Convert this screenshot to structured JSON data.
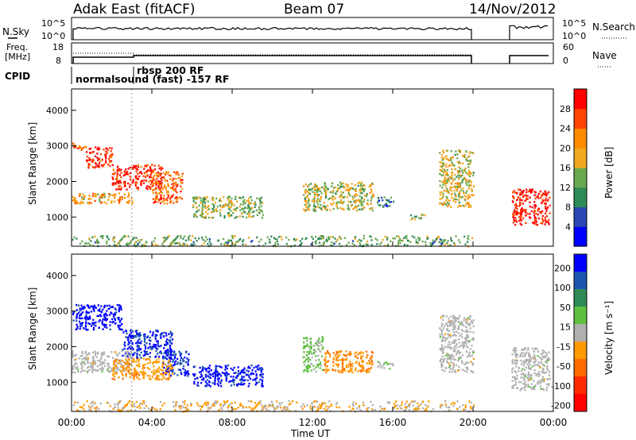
{
  "header": {
    "station": "Adak East (fitACF)",
    "beam": "Beam 07",
    "date": "14/Nov/2012"
  },
  "top_panels": {
    "nsky_label": "N.Sky",
    "nsearch_label": "N.Search",
    "noise_ticks": [
      "10^5",
      "10^0"
    ],
    "freq_label_line1": "Freq.",
    "freq_label_line2": "[MHz]",
    "freq_ticks": [
      "18",
      "8"
    ],
    "nave_label": "Nave",
    "nave_ticks": [
      "60",
      "0"
    ],
    "cpid_label": "CPID",
    "cpid_entries": [
      "normalsound (fast) -157 RF",
      "rbsp 200 RF"
    ]
  },
  "colors": {
    "power_scale": [
      "#0000ff",
      "#2a47b4",
      "#2e8b57",
      "#6aa84f",
      "#f0a820",
      "#ff8c00",
      "#ff4500",
      "#ff0000"
    ],
    "velocity_scale": [
      "#0000ff",
      "#1b55b0",
      "#2e8b57",
      "#5fc040",
      "#b0b0b0",
      "#ff9a00",
      "#ff6a00",
      "#ff2a00",
      "#ff0000"
    ],
    "ground_scatter": "#a8a8a8"
  },
  "chart_data": [
    {
      "type": "heatmap",
      "name": "power-panel",
      "xlabel": "Time UT",
      "ylabel": "Slant Range [km]",
      "x_ticks": [
        "00:00",
        "04:00",
        "08:00",
        "12:00",
        "16:00",
        "20:00",
        "00:00"
      ],
      "y_ticks": [
        "1000",
        "2000",
        "3000",
        "4000"
      ],
      "xlim": [
        0,
        24
      ],
      "ylim": [
        180,
        4600
      ],
      "colorbar": {
        "label": "Power [dB]",
        "ticks": [
          "4",
          "8",
          "12",
          "16",
          "20",
          "24",
          "28"
        ],
        "range": [
          0,
          30
        ]
      },
      "clusters": [
        {
          "t0": 0.0,
          "t1": 0.7,
          "r0": 2900,
          "r1": 3100,
          "value": 24
        },
        {
          "t0": 0.7,
          "t1": 2.0,
          "r0": 2400,
          "r1": 3000,
          "value": 27
        },
        {
          "t0": 2.0,
          "t1": 4.5,
          "r0": 1800,
          "r1": 2500,
          "value": 27
        },
        {
          "t0": 4.0,
          "t1": 5.5,
          "r0": 1400,
          "r1": 2300,
          "value": 23
        },
        {
          "t0": 0.0,
          "t1": 3.0,
          "r0": 1400,
          "r1": 1700,
          "value": 19
        },
        {
          "t0": 6.0,
          "t1": 9.5,
          "r0": 1000,
          "r1": 1600,
          "value": 14
        },
        {
          "t0": 11.5,
          "t1": 15.0,
          "r0": 1200,
          "r1": 2000,
          "value": 15
        },
        {
          "t0": 15.2,
          "t1": 16.0,
          "r0": 1300,
          "r1": 1600,
          "value": 8
        },
        {
          "t0": 16.8,
          "t1": 17.6,
          "r0": 950,
          "r1": 1100,
          "value": 12
        },
        {
          "t0": 18.3,
          "t1": 20.0,
          "r0": 1300,
          "r1": 2900,
          "value": 16
        },
        {
          "t0": 21.9,
          "t1": 23.8,
          "r0": 800,
          "r1": 1800,
          "value": 28
        },
        {
          "t0": 0.0,
          "t1": 20.0,
          "r0": 200,
          "r1": 500,
          "value": 12
        }
      ]
    },
    {
      "type": "heatmap",
      "name": "velocity-panel",
      "xlabel": "Time UT",
      "ylabel": "Slant Range [km]",
      "x_ticks": [
        "00:00",
        "04:00",
        "08:00",
        "12:00",
        "16:00",
        "20:00",
        "00:00"
      ],
      "y_ticks": [
        "1000",
        "2000",
        "3000",
        "4000"
      ],
      "xlim": [
        0,
        24
      ],
      "ylim": [
        180,
        4600
      ],
      "colorbar": {
        "label": "Velocity [m s⁻¹]",
        "ticks": [
          "200",
          "100",
          "50",
          "15",
          "-15",
          "-50",
          "-100",
          "-200"
        ],
        "range": [
          -250,
          250
        ]
      },
      "clusters": [
        {
          "t0": 0.0,
          "t1": 2.5,
          "r0": 2500,
          "r1": 3200,
          "value": 220
        },
        {
          "t0": 2.5,
          "t1": 5.0,
          "r0": 1700,
          "r1": 2500,
          "value": 200
        },
        {
          "t0": 4.5,
          "t1": 5.8,
          "r0": 1200,
          "r1": 1900,
          "value": 200
        },
        {
          "t0": 6.0,
          "t1": 9.5,
          "r0": 900,
          "r1": 1500,
          "value": 210
        },
        {
          "t0": 0.0,
          "t1": 3.0,
          "r0": 1300,
          "r1": 1900,
          "value": 0
        },
        {
          "t0": 2.0,
          "t1": 5.0,
          "r0": 1100,
          "r1": 1700,
          "value": -60
        },
        {
          "t0": 11.5,
          "t1": 12.5,
          "r0": 1300,
          "r1": 2300,
          "value": 40
        },
        {
          "t0": 12.5,
          "t1": 15.0,
          "r0": 1300,
          "r1": 1900,
          "value": -80
        },
        {
          "t0": 15.2,
          "t1": 16.0,
          "r0": 1400,
          "r1": 1600,
          "value": 30
        },
        {
          "t0": 18.3,
          "t1": 20.0,
          "r0": 1300,
          "r1": 2900,
          "value": 0
        },
        {
          "t0": 21.9,
          "t1": 23.8,
          "r0": 800,
          "r1": 2000,
          "value": 0
        },
        {
          "t0": 0.0,
          "t1": 20.0,
          "r0": 200,
          "r1": 500,
          "value": -30
        }
      ]
    }
  ]
}
